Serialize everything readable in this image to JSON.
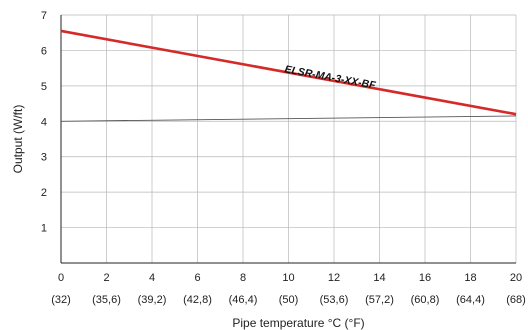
{
  "chart_data": {
    "type": "line",
    "title": "",
    "xlabel": "Pipe temperature °C (°F)",
    "ylabel": "Output (W/ft)",
    "xlim": [
      0,
      20
    ],
    "ylim": [
      0,
      7
    ],
    "grid": true,
    "x_ticks": [
      0,
      2,
      4,
      6,
      8,
      10,
      12,
      14,
      16,
      18,
      20
    ],
    "x_tick_labels_f": [
      "(32)",
      "(35,6)",
      "(39,2)",
      "(42,8)",
      "(46,4)",
      "(50)",
      "(53,6)",
      "(57,2)",
      "(60,8)",
      "(64,4)",
      "(68)"
    ],
    "y_ticks": [
      1,
      2,
      3,
      4,
      5,
      6,
      7
    ],
    "series": [
      {
        "name": "ELSR-MA-3-XX-BF",
        "color": "#d42a2a",
        "x": [
          0,
          20
        ],
        "y": [
          6.55,
          4.2
        ]
      },
      {
        "name": "",
        "color": "#555555",
        "x": [
          0,
          20
        ],
        "y": [
          4.0,
          4.15
        ]
      }
    ],
    "annotations": [
      {
        "text": "ELSR-MA-3-XX-BF",
        "x": 11.8,
        "y": 5.15
      }
    ]
  }
}
